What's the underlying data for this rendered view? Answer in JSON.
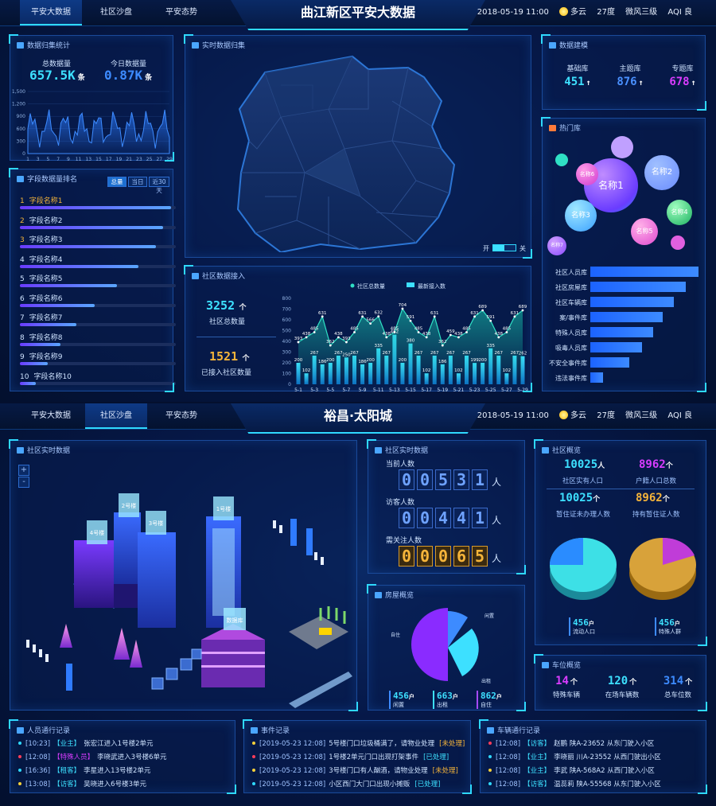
{
  "s1": {
    "tabs": [
      "平安大数据",
      "社区沙盘",
      "平安态势"
    ],
    "title": "曲江新区平安大数据",
    "weather": {
      "date": "2018-05-19 11:00",
      "cond": "多云",
      "temp": "27度",
      "wind": "微风三级",
      "aqi": "AQI 良"
    },
    "collect": {
      "title": "数据归集统计",
      "total_label": "总数据量",
      "total": "657.5K",
      "total_unit": "条",
      "today_label": "今日数据量",
      "today": "0.87K",
      "today_unit": "条",
      "yticks": [
        "1,500",
        "1,200",
        "900",
        "600",
        "300",
        "0"
      ],
      "xticks": [
        "1",
        "3",
        "5",
        "7",
        "9",
        "11",
        "13",
        "15",
        "17",
        "19",
        "21",
        "23",
        "25",
        "27",
        "29"
      ]
    },
    "ranking": {
      "title": "字段数据量排名",
      "tabs": [
        "总量",
        "当日",
        "近30天"
      ],
      "items": [
        {
          "n": "1",
          "label": "字段名称1",
          "v": 0.97
        },
        {
          "n": "2",
          "label": "字段名称2",
          "v": 0.92
        },
        {
          "n": "3",
          "label": "字段名称3",
          "v": 0.87
        },
        {
          "n": "4",
          "label": "字段名称4",
          "v": 0.76
        },
        {
          "n": "5",
          "label": "字段名称5",
          "v": 0.62
        },
        {
          "n": "6",
          "label": "字段名称6",
          "v": 0.48
        },
        {
          "n": "7",
          "label": "字段名称7",
          "v": 0.36
        },
        {
          "n": "8",
          "label": "字段名称8",
          "v": 0.26
        },
        {
          "n": "9",
          "label": "字段名称9",
          "v": 0.18
        },
        {
          "n": "10",
          "label": "字段名称10",
          "v": 0.1
        }
      ]
    },
    "map": {
      "title": "实时数据归集",
      "toggle_on": "开",
      "toggle_off": "关"
    },
    "access": {
      "title": "社区数据接入",
      "total": "3252",
      "total_label": "社区总数量",
      "connected": "1521",
      "connected_label": "已接入社区数量",
      "legend": [
        "社区总数量",
        "最新接入数"
      ],
      "yticks": [
        "800",
        "700",
        "600",
        "500",
        "400",
        "300",
        "200",
        "100",
        "0"
      ],
      "xticks": [
        "5-1",
        "5-3",
        "5-5",
        "5-7",
        "5-9",
        "5-11",
        "5-13",
        "5-15",
        "5-17",
        "5-19",
        "5-21",
        "5-23",
        "5-25",
        "5-27",
        "5-29"
      ],
      "line": [
        393,
        438,
        485,
        631,
        362,
        438,
        393,
        485,
        631,
        566,
        632,
        438,
        485,
        704,
        591,
        485,
        438,
        631,
        362,
        459,
        438,
        485,
        631,
        689,
        591,
        438,
        485,
        631,
        689
      ],
      "bars": [
        200,
        102,
        267,
        186,
        200,
        267,
        250,
        267,
        186,
        200,
        335,
        267,
        462,
        200,
        380,
        267,
        102,
        267,
        186,
        267,
        102,
        267,
        199,
        200,
        335,
        267,
        102,
        267,
        262
      ]
    },
    "modeling": {
      "title": "数据建模",
      "items": [
        {
          "label": "基础库",
          "v": "451",
          "c": "#3de0ff"
        },
        {
          "label": "主题库",
          "v": "876",
          "c": "#4a90ff"
        },
        {
          "label": "专题库",
          "v": "678",
          "c": "#d93cff"
        }
      ]
    },
    "hot": {
      "title": "热门库",
      "bubbles": [
        "名称1",
        "名称2",
        "名称3",
        "名称4",
        "名称5",
        "名称6",
        "名称7"
      ],
      "bars": [
        {
          "label": "社区人员库",
          "v": 1.0
        },
        {
          "label": "社区房屋库",
          "v": 0.88
        },
        {
          "label": "社区车辆库",
          "v": 0.77
        },
        {
          "label": "案/事件库",
          "v": 0.67
        },
        {
          "label": "特殊人员库",
          "v": 0.58
        },
        {
          "label": "吸毒人员库",
          "v": 0.48
        },
        {
          "label": "不安全事件库",
          "v": 0.36
        },
        {
          "label": "违法事件库",
          "v": 0.12
        }
      ]
    }
  },
  "s2": {
    "tabs": [
      "平安大数据",
      "社区沙盘",
      "平安态势"
    ],
    "title": "裕昌·太阳城",
    "weather": {
      "date": "2018-05-19 11:00",
      "cond": "多云",
      "temp": "27度",
      "wind": "微风三级",
      "aqi": "AQI 良"
    },
    "iso": {
      "title": "社区实时数据",
      "zoom_in": "+",
      "zoom_out": "-",
      "buildings": [
        "1号楼",
        "2号楼",
        "3号楼",
        "4号楼",
        "数据库"
      ]
    },
    "realtime": {
      "title": "社区实时数据",
      "current_label": "当前人数",
      "current": [
        "0",
        "0",
        "5",
        "3",
        "1"
      ],
      "visitor_label": "访客人数",
      "visitor": [
        "0",
        "0",
        "4",
        "4",
        "1"
      ],
      "watch_label": "需关注人数",
      "watch": [
        "0",
        "0",
        "0",
        "6",
        "5"
      ],
      "unit": "人"
    },
    "overview": {
      "title": "社区概览",
      "a": {
        "v": "10025",
        "u": "人",
        "label": "社区实有人口"
      },
      "b": {
        "v": "8962",
        "u": "个",
        "label": "户籍人口总数"
      },
      "c": {
        "v": "10025",
        "u": "个",
        "label": "暂住证未办理人数"
      },
      "d": {
        "v": "8962",
        "u": "个",
        "label": "持有暂住证人数"
      },
      "e": {
        "v": "456",
        "u": "户",
        "label": "流动人口"
      },
      "f": {
        "v": "456",
        "u": "户",
        "label": "特殊人群"
      }
    },
    "house": {
      "title": "房屋概览",
      "labels": [
        "闲置",
        "出租",
        "自住"
      ],
      "stats": [
        {
          "v": "456",
          "u": "户",
          "label": "闲置",
          "c": "#3d8bff"
        },
        {
          "v": "663",
          "u": "户",
          "label": "出租",
          "c": "#3de0ff"
        },
        {
          "v": "862",
          "u": "户",
          "label": "自住",
          "c": "#a54aff"
        }
      ]
    },
    "parking": {
      "title": "车位概览",
      "items": [
        {
          "v": "14",
          "u": "个",
          "label": "特殊车辆",
          "c": "#d93cff"
        },
        {
          "v": "120",
          "u": "个",
          "label": "在场车辆数",
          "c": "#3de0ff"
        },
        {
          "v": "314",
          "u": "个",
          "label": "总车位数",
          "c": "#3d8bff"
        }
      ]
    },
    "people": {
      "title": "人员通行记录",
      "rows": [
        {
          "t": "[10:23]",
          "tag": "【业主】",
          "text": "张宏江进入1号楼2单元",
          "dot": "#2fd9ff",
          "tc": "#3de0ff"
        },
        {
          "t": "[12:08]",
          "tag": "【特殊人员】",
          "text": "李晓武进入3号楼6单元",
          "dot": "#ff3d5a",
          "tc": "#d93cff"
        },
        {
          "t": "[16:36]",
          "tag": "【租客】",
          "text": "李星进入13号楼2单元",
          "dot": "#2fd9ff",
          "tc": "#3de0ff"
        },
        {
          "t": "[13:08]",
          "tag": "【访客】",
          "text": "吴晓进入6号楼3单元",
          "dot": "#f5d03a",
          "tc": "#3de0ff"
        }
      ]
    },
    "events": {
      "title": "事件记录",
      "rows": [
        {
          "t": "[2019-05-23 12:08]",
          "text": "5号楼门口垃圾桶满了，请物业处理",
          "st": "[未处理]",
          "sc": "#f5b43a",
          "dot": "#f5d03a"
        },
        {
          "t": "[2019-05-23 12:08]",
          "text": "1号楼2单元门口出现打架事件",
          "st": "[已处理]",
          "sc": "#3de0ff",
          "dot": "#ff3d5a"
        },
        {
          "t": "[2019-05-23 12:08]",
          "text": "3号楼门口有人酗酒，请物业处理",
          "st": "[未处理]",
          "sc": "#f5b43a",
          "dot": "#f5d03a"
        },
        {
          "t": "[2019-05-23 12:08]",
          "text": "小区西门大门口出现小摊贩",
          "st": "[已处理]",
          "sc": "#3de0ff",
          "dot": "#2fd9ff"
        }
      ]
    },
    "vehicles": {
      "title": "车辆通行记录",
      "rows": [
        {
          "t": "[12:08]",
          "tag": "【访客】",
          "text": "赵鹏 陕A-23652 从东门驶入小区",
          "dot": "#ff3d5a",
          "tc": "#3de0ff"
        },
        {
          "t": "[12:08]",
          "tag": "【业主】",
          "text": "李晓丽 川A-23552 从西门驶出小区",
          "dot": "#2fd9ff",
          "tc": "#3de0ff"
        },
        {
          "t": "[12:08]",
          "tag": "【业主】",
          "text": "李武 陕A-568A2 从西门驶入小区",
          "dot": "#f5d03a",
          "tc": "#3de0ff"
        },
        {
          "t": "[12:08]",
          "tag": "【访客】",
          "text": "温蕊莉 陕A-55568 从东门驶入小区",
          "dot": "#2fd9ff",
          "tc": "#3de0ff"
        }
      ]
    }
  }
}
